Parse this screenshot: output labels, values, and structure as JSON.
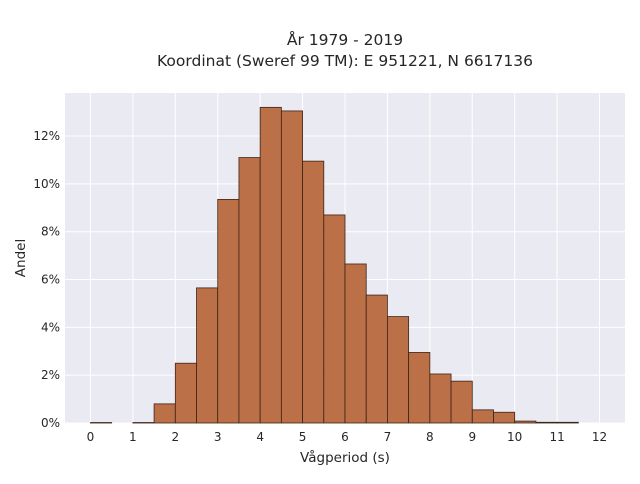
{
  "chart_data": {
    "type": "bar",
    "title": "År 1979 - 2019",
    "subtitle": "Koordinat (Sweref 99 TM): E 951221, N 6617136",
    "xlabel": "Vågperiod (s)",
    "ylabel": "Andel",
    "xlim": [
      -0.6,
      12.6
    ],
    "ylim": [
      0,
      13.8
    ],
    "grid": true,
    "bin_width": 0.5,
    "bin_starts": [
      0,
      1,
      1.5,
      2,
      2.5,
      3,
      3.5,
      4,
      4.5,
      5,
      5.5,
      6,
      6.5,
      7,
      7.5,
      8,
      8.5,
      9,
      9.5,
      10,
      10.5,
      11
    ],
    "values": [
      0.02,
      0.02,
      0.8,
      2.5,
      5.65,
      9.35,
      11.1,
      13.2,
      13.05,
      10.95,
      8.7,
      6.65,
      5.35,
      4.45,
      2.95,
      2.05,
      1.75,
      0.55,
      0.45,
      0.08,
      0.03,
      0.03
    ],
    "xticks": [
      "0",
      "1",
      "2",
      "3",
      "4",
      "5",
      "6",
      "7",
      "8",
      "9",
      "10",
      "11",
      "12"
    ],
    "yticks": [
      "0%",
      "2%",
      "4%",
      "6%",
      "8%",
      "10%",
      "12%"
    ],
    "colors": {
      "bar": "#b8693e",
      "bar_edge": "#3d2416",
      "plot_bg": "#eaeaf2",
      "grid": "#ffffff"
    }
  }
}
